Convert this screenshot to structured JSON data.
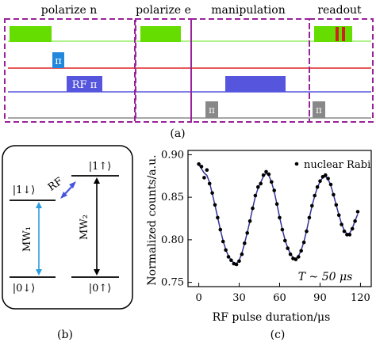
{
  "panel_a": {
    "sections": [
      "polarize n",
      "polarize e",
      "manipulation",
      "readout"
    ],
    "pi_label": "π",
    "rf_pi_label": "RF π",
    "caption": "(a)",
    "colors": {
      "laser": "#66dd00",
      "line_green": "#99ee66",
      "line_red": "#dd2222",
      "line_blue": "#5555dd",
      "pulse_cyan": "#2288dd",
      "pulse_blue": "#5555dd",
      "pulse_gray": "#888888",
      "box_purple": "#992299",
      "readout_red": "#cc2222"
    }
  },
  "panel_b": {
    "levels": {
      "top_left": "|1↓⟩",
      "bottom_left": "|0↓⟩",
      "top_right": "|1↑⟩",
      "bottom_right": "|0↑⟩"
    },
    "rf": "RF",
    "mw1": "MW₁",
    "mw2": "MW₂",
    "caption": "(b)"
  },
  "panel_c": {
    "ylabel": "Normalized counts/a.u.",
    "xlabel": "RF pulse duration/μs",
    "legend": "nuclear Rabi",
    "annotation": "T ~ 50 μs",
    "caption": "(c)",
    "colors": {
      "fit": "#333399",
      "points": "#000000"
    }
  },
  "chart_data": {
    "type": "scatter",
    "title": "",
    "xlabel": "RF pulse duration/μs",
    "ylabel": "Normalized counts/a.u.",
    "xlim": [
      -8,
      128
    ],
    "ylim": [
      0.745,
      0.905
    ],
    "x_ticks": [
      0,
      30,
      60,
      90,
      120
    ],
    "y_ticks": [
      0.75,
      0.8,
      0.85,
      0.9
    ],
    "series": [
      {
        "name": "nuclear Rabi",
        "points": [
          [
            0,
            0.889
          ],
          [
            2,
            0.886
          ],
          [
            4,
            0.873
          ],
          [
            6,
            0.882
          ],
          [
            8,
            0.866
          ],
          [
            10,
            0.855
          ],
          [
            12,
            0.841
          ],
          [
            14,
            0.826
          ],
          [
            16,
            0.812
          ],
          [
            18,
            0.798
          ],
          [
            20,
            0.788
          ],
          [
            22,
            0.78
          ],
          [
            24,
            0.776
          ],
          [
            26,
            0.772
          ],
          [
            28,
            0.771
          ],
          [
            30,
            0.775
          ],
          [
            32,
            0.783
          ],
          [
            34,
            0.796
          ],
          [
            36,
            0.808
          ],
          [
            38,
            0.822
          ],
          [
            40,
            0.837
          ],
          [
            42,
            0.852
          ],
          [
            44,
            0.862
          ],
          [
            46,
            0.866
          ],
          [
            48,
            0.876
          ],
          [
            50,
            0.88
          ],
          [
            52,
            0.877
          ],
          [
            54,
            0.868
          ],
          [
            56,
            0.858
          ],
          [
            58,
            0.842
          ],
          [
            60,
            0.826
          ],
          [
            62,
            0.812
          ],
          [
            64,
            0.799
          ],
          [
            66,
            0.79
          ],
          [
            68,
            0.783
          ],
          [
            70,
            0.778
          ],
          [
            72,
            0.777
          ],
          [
            74,
            0.78
          ],
          [
            76,
            0.787
          ],
          [
            78,
            0.797
          ],
          [
            80,
            0.81
          ],
          [
            82,
            0.826
          ],
          [
            84,
            0.84
          ],
          [
            86,
            0.852
          ],
          [
            88,
            0.862
          ],
          [
            90,
            0.869
          ],
          [
            92,
            0.874
          ],
          [
            94,
            0.876
          ],
          [
            96,
            0.872
          ],
          [
            98,
            0.865
          ],
          [
            100,
            0.853
          ],
          [
            102,
            0.841
          ],
          [
            104,
            0.829
          ],
          [
            106,
            0.818
          ],
          [
            108,
            0.81
          ],
          [
            110,
            0.806
          ],
          [
            112,
            0.806
          ],
          [
            114,
            0.813
          ],
          [
            116,
            0.822
          ],
          [
            118,
            0.833
          ]
        ]
      }
    ],
    "grid": false
  }
}
